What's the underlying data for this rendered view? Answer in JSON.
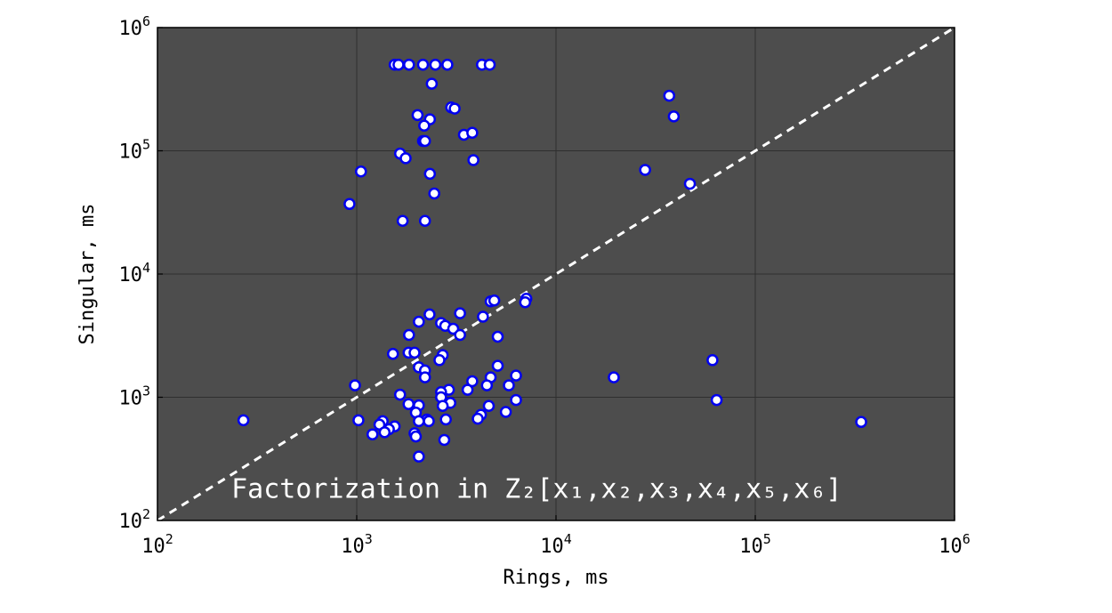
{
  "chart_data": {
    "type": "scatter",
    "title": "",
    "xlabel": "Rings, ms",
    "ylabel": "Singular, ms",
    "xscale": "log",
    "yscale": "log",
    "xlim": [
      100,
      1000000
    ],
    "ylim": [
      100,
      1000000
    ],
    "x_ticks": [
      {
        "value": 100,
        "base": "10",
        "exp": "2"
      },
      {
        "value": 1000,
        "base": "10",
        "exp": "3"
      },
      {
        "value": 10000,
        "base": "10",
        "exp": "4"
      },
      {
        "value": 100000,
        "base": "10",
        "exp": "5"
      },
      {
        "value": 1000000,
        "base": "10",
        "exp": "6"
      }
    ],
    "y_ticks": [
      {
        "value": 100,
        "base": "10",
        "exp": "2"
      },
      {
        "value": 1000,
        "base": "10",
        "exp": "3"
      },
      {
        "value": 10000,
        "base": "10",
        "exp": "4"
      },
      {
        "value": 100000,
        "base": "10",
        "exp": "5"
      },
      {
        "value": 1000000,
        "base": "10",
        "exp": "6"
      }
    ],
    "grid": true,
    "reference_line": {
      "style": "dashed",
      "color": "#ffffff",
      "from": [
        100,
        100
      ],
      "to": [
        1000000,
        1000000
      ]
    },
    "annotation": {
      "text": "Factorization in Z₂[x₁,x₂,x₃,x₄,x₅,x₆]",
      "x": 8000,
      "y": 180
    },
    "background_color": "#4d4d4d",
    "marker_fill": "#ffffff",
    "marker_edge": "#0000ee",
    "points": [
      {
        "x": 1550,
        "y": 500000
      },
      {
        "x": 1620,
        "y": 500000
      },
      {
        "x": 1830,
        "y": 500000
      },
      {
        "x": 2150,
        "y": 500000
      },
      {
        "x": 2480,
        "y": 500000
      },
      {
        "x": 2850,
        "y": 500000
      },
      {
        "x": 4250,
        "y": 500000
      },
      {
        "x": 4650,
        "y": 500000
      },
      {
        "x": 2380,
        "y": 350000
      },
      {
        "x": 2980,
        "y": 225000
      },
      {
        "x": 3100,
        "y": 220000
      },
      {
        "x": 2020,
        "y": 195000
      },
      {
        "x": 2330,
        "y": 180000
      },
      {
        "x": 2180,
        "y": 160000
      },
      {
        "x": 3450,
        "y": 135000
      },
      {
        "x": 3800,
        "y": 140000
      },
      {
        "x": 2150,
        "y": 120000
      },
      {
        "x": 2200,
        "y": 120000
      },
      {
        "x": 1650,
        "y": 95000
      },
      {
        "x": 1760,
        "y": 87000
      },
      {
        "x": 3850,
        "y": 84000
      },
      {
        "x": 1050,
        "y": 68000
      },
      {
        "x": 2330,
        "y": 65000
      },
      {
        "x": 2450,
        "y": 45000
      },
      {
        "x": 920,
        "y": 37000
      },
      {
        "x": 1700,
        "y": 27000
      },
      {
        "x": 2200,
        "y": 27000
      },
      {
        "x": 37000,
        "y": 280000
      },
      {
        "x": 39000,
        "y": 190000
      },
      {
        "x": 28000,
        "y": 70000
      },
      {
        "x": 47000,
        "y": 54000
      },
      {
        "x": 7100,
        "y": 6300
      },
      {
        "x": 7000,
        "y": 5900
      },
      {
        "x": 4700,
        "y": 6000
      },
      {
        "x": 4900,
        "y": 6100
      },
      {
        "x": 2320,
        "y": 4700
      },
      {
        "x": 3300,
        "y": 4800
      },
      {
        "x": 4300,
        "y": 4500
      },
      {
        "x": 2050,
        "y": 4100
      },
      {
        "x": 2650,
        "y": 4000
      },
      {
        "x": 2780,
        "y": 3800
      },
      {
        "x": 3050,
        "y": 3600
      },
      {
        "x": 3300,
        "y": 3200
      },
      {
        "x": 1830,
        "y": 3200
      },
      {
        "x": 5100,
        "y": 3100
      },
      {
        "x": 1520,
        "y": 2250
      },
      {
        "x": 1820,
        "y": 2300
      },
      {
        "x": 1950,
        "y": 2300
      },
      {
        "x": 2700,
        "y": 2200
      },
      {
        "x": 2600,
        "y": 2000
      },
      {
        "x": 2050,
        "y": 1750
      },
      {
        "x": 2200,
        "y": 1650
      },
      {
        "x": 2200,
        "y": 1450
      },
      {
        "x": 5100,
        "y": 1800
      },
      {
        "x": 6300,
        "y": 1500
      },
      {
        "x": 4700,
        "y": 1450
      },
      {
        "x": 3800,
        "y": 1350
      },
      {
        "x": 980,
        "y": 1250
      },
      {
        "x": 4500,
        "y": 1250
      },
      {
        "x": 5800,
        "y": 1250
      },
      {
        "x": 2900,
        "y": 1150
      },
      {
        "x": 2650,
        "y": 1100
      },
      {
        "x": 3600,
        "y": 1150
      },
      {
        "x": 1650,
        "y": 1050
      },
      {
        "x": 2650,
        "y": 1000
      },
      {
        "x": 6300,
        "y": 950
      },
      {
        "x": 2950,
        "y": 900
      },
      {
        "x": 1820,
        "y": 880
      },
      {
        "x": 2050,
        "y": 860
      },
      {
        "x": 2700,
        "y": 850
      },
      {
        "x": 4600,
        "y": 850
      },
      {
        "x": 1980,
        "y": 750
      },
      {
        "x": 4200,
        "y": 720
      },
      {
        "x": 5600,
        "y": 760
      },
      {
        "x": 2250,
        "y": 660
      },
      {
        "x": 2300,
        "y": 640
      },
      {
        "x": 2050,
        "y": 640
      },
      {
        "x": 2800,
        "y": 660
      },
      {
        "x": 4050,
        "y": 670
      },
      {
        "x": 1020,
        "y": 650
      },
      {
        "x": 270,
        "y": 650
      },
      {
        "x": 1350,
        "y": 640
      },
      {
        "x": 1300,
        "y": 600
      },
      {
        "x": 1550,
        "y": 580
      },
      {
        "x": 1450,
        "y": 550
      },
      {
        "x": 1380,
        "y": 520
      },
      {
        "x": 1200,
        "y": 500
      },
      {
        "x": 1950,
        "y": 510
      },
      {
        "x": 1980,
        "y": 480
      },
      {
        "x": 2750,
        "y": 450
      },
      {
        "x": 2050,
        "y": 330
      },
      {
        "x": 19500,
        "y": 1450
      },
      {
        "x": 61000,
        "y": 2000
      },
      {
        "x": 64000,
        "y": 950
      },
      {
        "x": 340000,
        "y": 630
      }
    ]
  }
}
